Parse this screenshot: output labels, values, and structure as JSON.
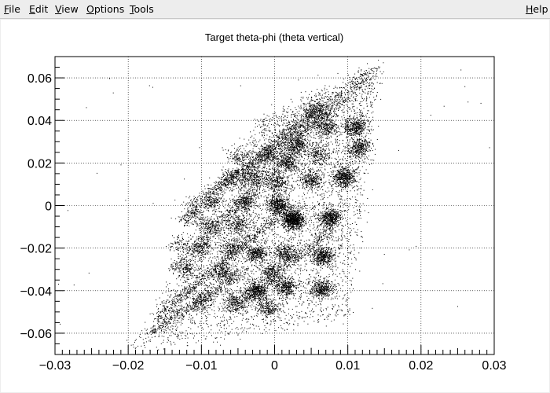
{
  "menubar": {
    "file": {
      "acc": "F",
      "rest": "ile"
    },
    "edit": {
      "acc": "E",
      "rest": "dit"
    },
    "view": {
      "acc": "V",
      "rest": "iew"
    },
    "options": {
      "acc": "O",
      "rest": "ptions"
    },
    "tools": {
      "acc": "T",
      "rest": "ools"
    },
    "help": {
      "acc": "H",
      "rest": "elp"
    }
  },
  "chart_data": {
    "type": "scatter",
    "title": "Target theta-phi (theta vertical)",
    "xlabel": "",
    "ylabel": "",
    "xlim": [
      -0.03,
      0.03
    ],
    "ylim": [
      -0.07,
      0.07
    ],
    "grid": true,
    "marker_color": "#000000",
    "x_ticks": [
      -0.03,
      -0.02,
      -0.01,
      0,
      0.01,
      0.02,
      0.03
    ],
    "x_tick_labels": [
      "−0.03",
      "−0.02",
      "−0.01",
      "0",
      "0.01",
      "0.02",
      "0.03"
    ],
    "y_ticks": [
      -0.06,
      -0.04,
      -0.02,
      0,
      0.02,
      0.04,
      0.06
    ],
    "y_tick_labels": [
      "−0.06",
      "−0.04",
      "−0.02",
      "0",
      "0.02",
      "0.04",
      "0.06"
    ],
    "clusters": [
      {
        "x": 0.0025,
        "y": -0.0065,
        "n": 900
      },
      {
        "x": 0.0005,
        "y": 0.0005,
        "n": 500
      },
      {
        "x": 0.0075,
        "y": -0.0055,
        "n": 500
      },
      {
        "x": 0.0095,
        "y": 0.0135,
        "n": 500
      },
      {
        "x": 0.011,
        "y": 0.037,
        "n": 400
      },
      {
        "x": 0.0115,
        "y": 0.027,
        "n": 350
      },
      {
        "x": 0.0065,
        "y": -0.0235,
        "n": 450
      },
      {
        "x": 0.0065,
        "y": -0.039,
        "n": 400
      },
      {
        "x": 0.0015,
        "y": -0.0385,
        "n": 350
      },
      {
        "x": 0.0015,
        "y": -0.0225,
        "n": 350
      },
      {
        "x": -0.0025,
        "y": -0.04,
        "n": 450
      },
      {
        "x": -0.0025,
        "y": -0.0225,
        "n": 350
      },
      {
        "x": -0.0005,
        "y": -0.031,
        "n": 250
      },
      {
        "x": 0.005,
        "y": 0.012,
        "n": 300
      },
      {
        "x": 0.002,
        "y": 0.02,
        "n": 250
      },
      {
        "x": 0.0005,
        "y": 0.011,
        "n": 250
      },
      {
        "x": 0.003,
        "y": 0.029,
        "n": 250
      },
      {
        "x": 0.007,
        "y": 0.037,
        "n": 250
      },
      {
        "x": 0.006,
        "y": 0.024,
        "n": 200
      },
      {
        "x": 0.0055,
        "y": 0.045,
        "n": 180
      },
      {
        "x": -0.004,
        "y": 0.002,
        "n": 220
      },
      {
        "x": -0.003,
        "y": 0.013,
        "n": 200
      },
      {
        "x": -0.001,
        "y": 0.025,
        "n": 180
      },
      {
        "x": -0.005,
        "y": -0.009,
        "n": 220
      },
      {
        "x": -0.006,
        "y": -0.02,
        "n": 200
      },
      {
        "x": -0.007,
        "y": -0.031,
        "n": 220
      },
      {
        "x": -0.009,
        "y": -0.009,
        "n": 150
      },
      {
        "x": -0.0085,
        "y": 0.002,
        "n": 150
      },
      {
        "x": -0.006,
        "y": 0.013,
        "n": 150
      },
      {
        "x": -0.005,
        "y": 0.023,
        "n": 120
      },
      {
        "x": -0.01,
        "y": -0.02,
        "n": 150
      },
      {
        "x": -0.012,
        "y": -0.03,
        "n": 130
      },
      {
        "x": -0.01,
        "y": -0.045,
        "n": 150
      },
      {
        "x": -0.001,
        "y": -0.048,
        "n": 250
      },
      {
        "x": -0.011,
        "y": -0.005,
        "n": 120
      },
      {
        "x": -0.013,
        "y": -0.018,
        "n": 100
      },
      {
        "x": -0.0055,
        "y": -0.045,
        "n": 200
      }
    ],
    "streaks": [
      {
        "x1": -0.016,
        "y1": -0.052,
        "x2": 0.0,
        "y2": -0.006,
        "n": 700
      },
      {
        "x1": -0.014,
        "y1": -0.03,
        "x2": 0.004,
        "y2": 0.03,
        "n": 700
      },
      {
        "x1": -0.013,
        "y1": -0.008,
        "x2": 0.006,
        "y2": 0.047,
        "n": 600
      },
      {
        "x1": -0.012,
        "y1": 0.0,
        "x2": 0.008,
        "y2": 0.045,
        "n": 500
      },
      {
        "x1": -0.017,
        "y1": -0.06,
        "x2": -0.004,
        "y2": -0.03,
        "n": 500
      },
      {
        "x1": -0.006,
        "y1": -0.05,
        "x2": 0.008,
        "y2": -0.01,
        "n": 500
      },
      {
        "x1": -0.005,
        "y1": 0.01,
        "x2": 0.013,
        "y2": 0.06,
        "n": 500
      },
      {
        "x1": 0.0,
        "y1": 0.03,
        "x2": 0.014,
        "y2": 0.065,
        "n": 300
      }
    ],
    "background_region": {
      "lower_left": [
        -0.0195,
        -0.068
      ],
      "upper_left": [
        -0.002,
        0.04
      ],
      "upper_right": [
        0.0145,
        0.068
      ],
      "lower_right": [
        0.01,
        -0.053
      ],
      "n": 4500
    }
  }
}
